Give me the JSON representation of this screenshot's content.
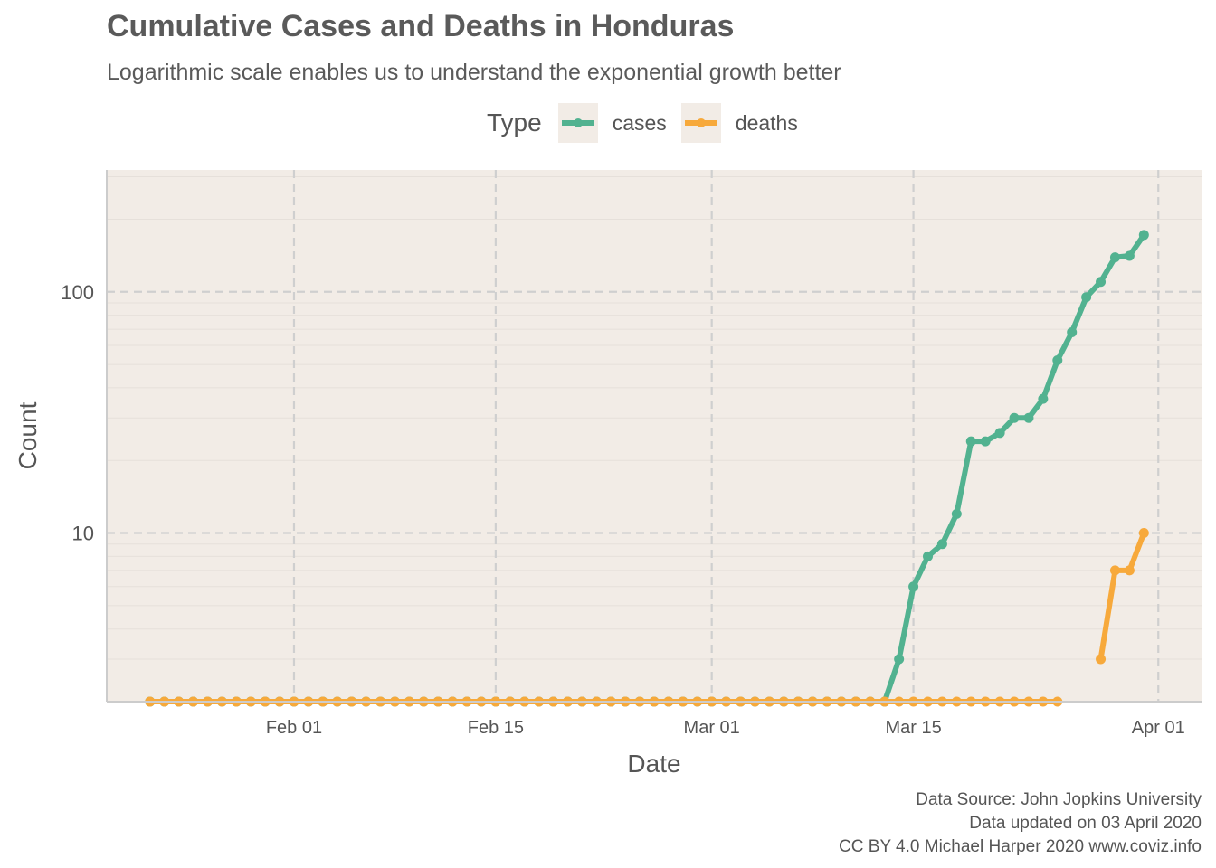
{
  "title": "Cumulative Cases and Deaths in Honduras",
  "subtitle": "Logarithmic scale enables us to understand the exponential growth better",
  "legend": {
    "title": "Type",
    "items": [
      {
        "label": "cases",
        "color": "#52b290"
      },
      {
        "label": "deaths",
        "color": "#f7a93b"
      }
    ]
  },
  "caption": [
    "Data Source: John Jopkins University",
    "Data updated on 03 April 2020",
    "CC BY 4.0 Michael Harper 2020 www.coviz.info"
  ],
  "chart_data": {
    "type": "line",
    "title": "Cumulative Cases and Deaths in Honduras",
    "subtitle": "Logarithmic scale enables us to understand the exponential growth better",
    "xlabel": "Date",
    "ylabel": "Count",
    "y_scale": "log10",
    "x_ticks": [
      "Feb 01",
      "Feb 15",
      "Mar 01",
      "Mar 15",
      "Apr 01"
    ],
    "y_ticks": [
      "10",
      "100"
    ],
    "xlim": [
      "2020-01-19",
      "2020-04-04"
    ],
    "ylim": [
      2,
      320
    ],
    "panel_background": "#f2ece6",
    "grid": true,
    "legend_position": "top",
    "series": [
      {
        "name": "cases",
        "color": "#52b290",
        "points": [
          [
            "2020-01-22",
            0
          ],
          [
            "2020-01-23",
            0
          ],
          [
            "2020-01-24",
            0
          ],
          [
            "2020-01-25",
            0
          ],
          [
            "2020-01-26",
            0
          ],
          [
            "2020-01-27",
            0
          ],
          [
            "2020-01-28",
            0
          ],
          [
            "2020-01-29",
            0
          ],
          [
            "2020-01-30",
            0
          ],
          [
            "2020-01-31",
            0
          ],
          [
            "2020-02-01",
            0
          ],
          [
            "2020-02-02",
            0
          ],
          [
            "2020-02-03",
            0
          ],
          [
            "2020-02-04",
            0
          ],
          [
            "2020-02-05",
            0
          ],
          [
            "2020-02-06",
            0
          ],
          [
            "2020-02-07",
            0
          ],
          [
            "2020-02-08",
            0
          ],
          [
            "2020-02-09",
            0
          ],
          [
            "2020-02-10",
            0
          ],
          [
            "2020-02-11",
            0
          ],
          [
            "2020-02-12",
            0
          ],
          [
            "2020-02-13",
            0
          ],
          [
            "2020-02-14",
            0
          ],
          [
            "2020-02-15",
            0
          ],
          [
            "2020-02-16",
            0
          ],
          [
            "2020-02-17",
            0
          ],
          [
            "2020-02-18",
            0
          ],
          [
            "2020-02-19",
            0
          ],
          [
            "2020-02-20",
            0
          ],
          [
            "2020-02-21",
            0
          ],
          [
            "2020-02-22",
            0
          ],
          [
            "2020-02-23",
            0
          ],
          [
            "2020-02-24",
            0
          ],
          [
            "2020-02-25",
            0
          ],
          [
            "2020-02-26",
            0
          ],
          [
            "2020-02-27",
            0
          ],
          [
            "2020-02-28",
            0
          ],
          [
            "2020-02-29",
            0
          ],
          [
            "2020-03-01",
            0
          ],
          [
            "2020-03-02",
            0
          ],
          [
            "2020-03-03",
            0
          ],
          [
            "2020-03-04",
            0
          ],
          [
            "2020-03-05",
            0
          ],
          [
            "2020-03-06",
            0
          ],
          [
            "2020-03-07",
            0
          ],
          [
            "2020-03-08",
            0
          ],
          [
            "2020-03-09",
            0
          ],
          [
            "2020-03-10",
            0
          ],
          [
            "2020-03-11",
            2
          ],
          [
            "2020-03-12",
            2
          ],
          [
            "2020-03-13",
            2
          ],
          [
            "2020-03-14",
            3
          ],
          [
            "2020-03-15",
            6
          ],
          [
            "2020-03-16",
            8
          ],
          [
            "2020-03-17",
            9
          ],
          [
            "2020-03-18",
            12
          ],
          [
            "2020-03-19",
            24
          ],
          [
            "2020-03-20",
            24
          ],
          [
            "2020-03-21",
            26
          ],
          [
            "2020-03-22",
            30
          ],
          [
            "2020-03-23",
            30
          ],
          [
            "2020-03-24",
            36
          ],
          [
            "2020-03-25",
            52
          ],
          [
            "2020-03-26",
            68
          ],
          [
            "2020-03-27",
            95
          ],
          [
            "2020-03-28",
            110
          ],
          [
            "2020-03-29",
            139
          ],
          [
            "2020-03-30",
            141
          ],
          [
            "2020-03-31",
            172
          ]
        ]
      },
      {
        "name": "deaths",
        "color": "#f7a93b",
        "points": [
          [
            "2020-01-22",
            0
          ],
          [
            "2020-01-23",
            0
          ],
          [
            "2020-01-24",
            0
          ],
          [
            "2020-01-25",
            0
          ],
          [
            "2020-01-26",
            0
          ],
          [
            "2020-01-27",
            0
          ],
          [
            "2020-01-28",
            0
          ],
          [
            "2020-01-29",
            0
          ],
          [
            "2020-01-30",
            0
          ],
          [
            "2020-01-31",
            0
          ],
          [
            "2020-02-01",
            0
          ],
          [
            "2020-02-02",
            0
          ],
          [
            "2020-02-03",
            0
          ],
          [
            "2020-02-04",
            0
          ],
          [
            "2020-02-05",
            0
          ],
          [
            "2020-02-06",
            0
          ],
          [
            "2020-02-07",
            0
          ],
          [
            "2020-02-08",
            0
          ],
          [
            "2020-02-09",
            0
          ],
          [
            "2020-02-10",
            0
          ],
          [
            "2020-02-11",
            0
          ],
          [
            "2020-02-12",
            0
          ],
          [
            "2020-02-13",
            0
          ],
          [
            "2020-02-14",
            0
          ],
          [
            "2020-02-15",
            0
          ],
          [
            "2020-02-16",
            0
          ],
          [
            "2020-02-17",
            0
          ],
          [
            "2020-02-18",
            0
          ],
          [
            "2020-02-19",
            0
          ],
          [
            "2020-02-20",
            0
          ],
          [
            "2020-02-21",
            0
          ],
          [
            "2020-02-22",
            0
          ],
          [
            "2020-02-23",
            0
          ],
          [
            "2020-02-24",
            0
          ],
          [
            "2020-02-25",
            0
          ],
          [
            "2020-02-26",
            0
          ],
          [
            "2020-02-27",
            0
          ],
          [
            "2020-02-28",
            0
          ],
          [
            "2020-02-29",
            0
          ],
          [
            "2020-03-01",
            0
          ],
          [
            "2020-03-02",
            0
          ],
          [
            "2020-03-03",
            0
          ],
          [
            "2020-03-04",
            0
          ],
          [
            "2020-03-05",
            0
          ],
          [
            "2020-03-06",
            0
          ],
          [
            "2020-03-07",
            0
          ],
          [
            "2020-03-08",
            0
          ],
          [
            "2020-03-09",
            0
          ],
          [
            "2020-03-10",
            0
          ],
          [
            "2020-03-11",
            0
          ],
          [
            "2020-03-12",
            0
          ],
          [
            "2020-03-13",
            0
          ],
          [
            "2020-03-14",
            0
          ],
          [
            "2020-03-15",
            0
          ],
          [
            "2020-03-16",
            0
          ],
          [
            "2020-03-17",
            0
          ],
          [
            "2020-03-18",
            0
          ],
          [
            "2020-03-19",
            0
          ],
          [
            "2020-03-20",
            0
          ],
          [
            "2020-03-21",
            0
          ],
          [
            "2020-03-22",
            0
          ],
          [
            "2020-03-23",
            0
          ],
          [
            "2020-03-24",
            0
          ],
          [
            "2020-03-25",
            0
          ],
          [
            "2020-03-28",
            3
          ],
          [
            "2020-03-29",
            7
          ],
          [
            "2020-03-30",
            7
          ],
          [
            "2020-03-31",
            10
          ]
        ]
      }
    ]
  }
}
